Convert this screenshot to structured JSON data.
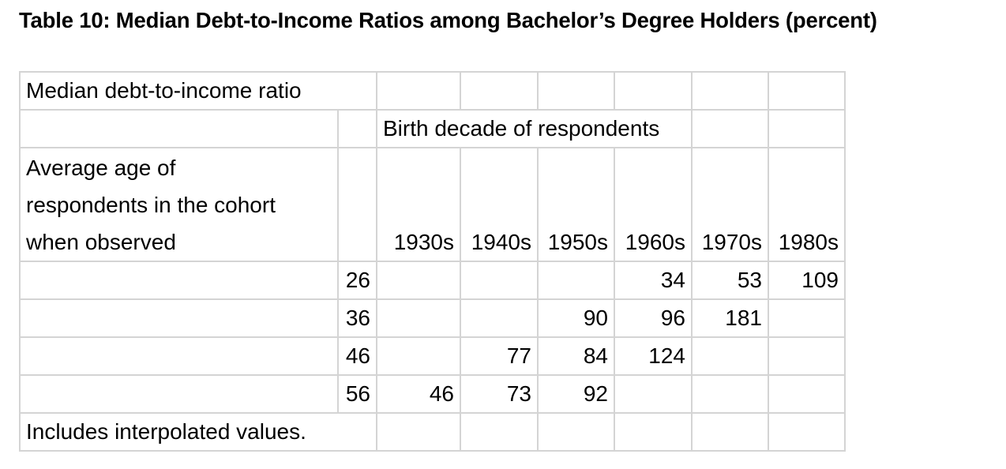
{
  "title": "Table 10: Median Debt-to-Income Ratios among Bachelor’s Degree Holders (percent)",
  "table": {
    "header_label": "Median debt-to-income ratio",
    "birth_decade_label": "Birth decade of respondents",
    "age_label_lines": [
      "Average age of",
      "respondents in the cohort",
      "when observed"
    ],
    "decades": [
      "1930s",
      "1940s",
      "1950s",
      "1960s",
      "1970s",
      "1980s"
    ],
    "rows": [
      {
        "age": "26",
        "values": [
          "",
          "",
          "",
          "34",
          "53",
          "109"
        ]
      },
      {
        "age": "36",
        "values": [
          "",
          "",
          "90",
          "96",
          "181",
          ""
        ]
      },
      {
        "age": "46",
        "values": [
          "",
          "77",
          "84",
          "124",
          "",
          ""
        ]
      },
      {
        "age": "56",
        "values": [
          "46",
          "73",
          "92",
          "",
          "",
          ""
        ]
      }
    ],
    "footnote": "Includes interpolated values."
  }
}
